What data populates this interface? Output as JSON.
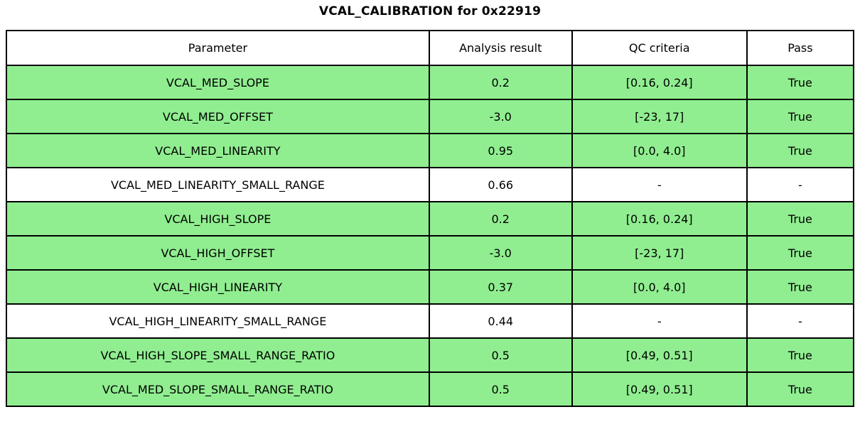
{
  "title": "VCAL_CALIBRATION for 0x22919",
  "colors": {
    "pass_row_green": "#90ee90",
    "plain_row_white": "#ffffff",
    "border": "#000000",
    "text": "#000000"
  },
  "chart_data": {
    "type": "table",
    "title": "VCAL_CALIBRATION for 0x22919",
    "columns": [
      "Parameter",
      "Analysis result",
      "QC criteria",
      "Pass"
    ],
    "rows": [
      [
        "VCAL_MED_SLOPE",
        "0.2",
        "[0.16, 0.24]",
        "True"
      ],
      [
        "VCAL_MED_OFFSET",
        "-3.0",
        "[-23, 17]",
        "True"
      ],
      [
        "VCAL_MED_LINEARITY",
        "0.95",
        "[0.0, 4.0]",
        "True"
      ],
      [
        "VCAL_MED_LINEARITY_SMALL_RANGE",
        "0.66",
        "-",
        "-"
      ],
      [
        "VCAL_HIGH_SLOPE",
        "0.2",
        "[0.16, 0.24]",
        "True"
      ],
      [
        "VCAL_HIGH_OFFSET",
        "-3.0",
        "[-23, 17]",
        "True"
      ],
      [
        "VCAL_HIGH_LINEARITY",
        "0.37",
        "[0.0, 4.0]",
        "True"
      ],
      [
        "VCAL_HIGH_LINEARITY_SMALL_RANGE",
        "0.44",
        "-",
        "-"
      ],
      [
        "VCAL_HIGH_SLOPE_SMALL_RANGE_RATIO",
        "0.5",
        "[0.49, 0.51]",
        "True"
      ],
      [
        "VCAL_MED_SLOPE_SMALL_RANGE_RATIO",
        "0.5",
        "[0.49, 0.51]",
        "True"
      ]
    ],
    "layout": {
      "grid": "all-black-borders",
      "highlight_rule": "rows with Pass == True are green"
    }
  }
}
